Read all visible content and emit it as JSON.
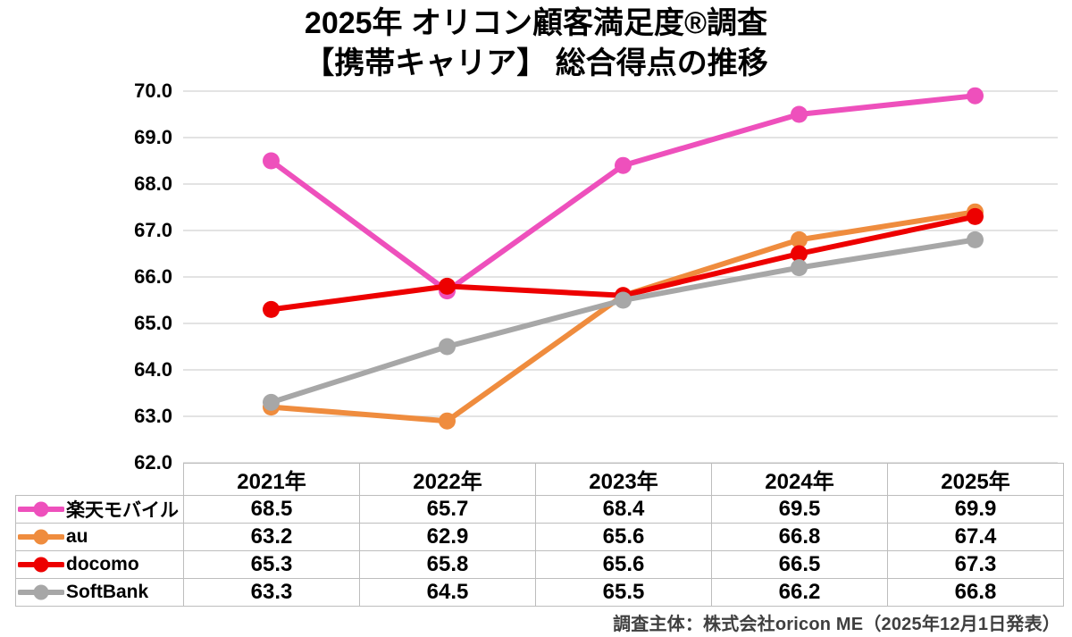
{
  "title": {
    "line1": "2025年 オリコン顧客満足度®調査",
    "line2": "【携帯キャリア】 総合得点の推移"
  },
  "footer": {
    "source": "調査主体：株式会社oricon ME（2025年12月1日発表）"
  },
  "chart_data": {
    "type": "line",
    "categories": [
      "2021年",
      "2022年",
      "2023年",
      "2024年",
      "2025年"
    ],
    "series": [
      {
        "name": "楽天モバイル",
        "color": "#ee50bc",
        "values": [
          68.5,
          65.7,
          68.4,
          69.5,
          69.9
        ]
      },
      {
        "name": "au",
        "color": "#ef8c3e",
        "values": [
          63.2,
          62.9,
          65.6,
          66.8,
          67.4
        ]
      },
      {
        "name": "docomo",
        "color": "#ed0000",
        "values": [
          65.3,
          65.8,
          65.6,
          66.5,
          67.3
        ]
      },
      {
        "name": "SoftBank",
        "color": "#a7a7a7",
        "values": [
          63.3,
          64.5,
          65.5,
          66.2,
          66.8
        ]
      }
    ],
    "ylim": [
      62.0,
      70.0
    ],
    "yticks": [
      "70.0",
      "69.0",
      "68.0",
      "67.0",
      "66.0",
      "65.0",
      "64.0",
      "63.0",
      "62.0"
    ],
    "grid": "horizontal",
    "gridline_color": "#dadada",
    "legend_position": "table-left-column",
    "table_border_color": "#bdbdbd"
  }
}
